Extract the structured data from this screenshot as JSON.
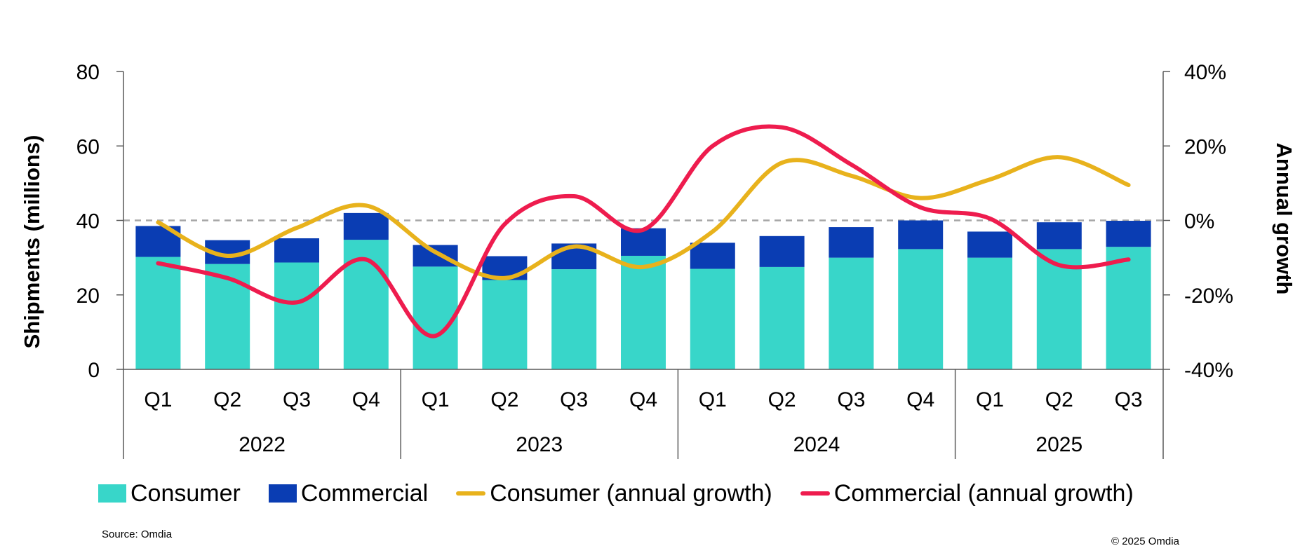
{
  "chart_data": {
    "type": "bar+line",
    "title": "",
    "years": [
      "2022",
      "2023",
      "2024",
      "2025"
    ],
    "categories": [
      "Q1",
      "Q2",
      "Q3",
      "Q4",
      "Q1",
      "Q2",
      "Q3",
      "Q4",
      "Q1",
      "Q2",
      "Q3",
      "Q4",
      "Q1",
      "Q2",
      "Q3"
    ],
    "category_year": [
      "2022",
      "2022",
      "2022",
      "2022",
      "2023",
      "2023",
      "2023",
      "2023",
      "2024",
      "2024",
      "2024",
      "2024",
      "2025",
      "2025",
      "2025"
    ],
    "ylabel": "Shipments (millions)",
    "y2label": "Annual growth",
    "ylim": [
      0,
      80
    ],
    "y2lim": [
      -40,
      40
    ],
    "yticks": [
      0,
      20,
      40,
      60,
      80
    ],
    "y2ticks": [
      -40,
      -20,
      0,
      20,
      40
    ],
    "y2tick_labels": [
      "-40%",
      "-20%",
      "0%",
      "20%",
      "40%"
    ],
    "zero_growth_reference_line": true,
    "series": [
      {
        "name": "Consumer",
        "type": "bar",
        "stack": "shipments",
        "color": "#38D6C9",
        "values": [
          30.2,
          28.3,
          28.7,
          34.8,
          27.6,
          24.0,
          26.9,
          30.5,
          27.0,
          27.5,
          30.0,
          32.3,
          30.0,
          32.3,
          32.9
        ]
      },
      {
        "name": "Commercial",
        "type": "bar",
        "stack": "shipments",
        "color": "#0A3DB3",
        "values": [
          8.3,
          6.4,
          6.5,
          7.2,
          5.8,
          6.4,
          6.9,
          7.4,
          7.0,
          8.3,
          8.2,
          7.7,
          7.0,
          7.2,
          7.0
        ]
      },
      {
        "name": "Consumer (annual growth)",
        "type": "line",
        "axis": "right",
        "color": "#E8B21C",
        "values": [
          -0.5,
          -9.5,
          -2,
          4,
          -8.5,
          -15.5,
          -7,
          -12.5,
          -3,
          15.5,
          12,
          6,
          11,
          17,
          9.5
        ]
      },
      {
        "name": "Commercial (annual growth)",
        "type": "line",
        "axis": "right",
        "color": "#EE1C4E",
        "values": [
          -11.5,
          -15.5,
          -22,
          -10.5,
          -31,
          -1,
          6.5,
          -2.5,
          20,
          25,
          15,
          3.5,
          0.5,
          -12,
          -10.5
        ]
      }
    ],
    "legend_position": "bottom"
  },
  "legend": [
    {
      "label": "Consumer",
      "kind": "box",
      "color": "#38D6C9"
    },
    {
      "label": "Commercial",
      "kind": "box",
      "color": "#0A3DB3"
    },
    {
      "label": "Consumer (annual growth)",
      "kind": "line",
      "color": "#E8B21C"
    },
    {
      "label": "Commercial (annual growth)",
      "kind": "line",
      "color": "#EE1C4E"
    }
  ],
  "footer": {
    "source": "Source: Omdia",
    "copyright": "© 2025 Omdia"
  }
}
